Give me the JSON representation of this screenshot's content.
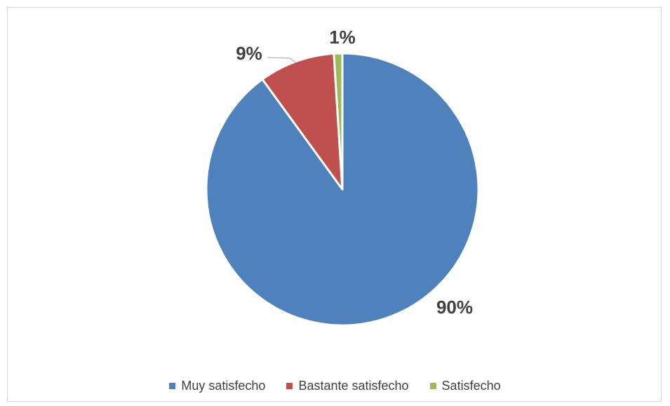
{
  "chart_data": {
    "type": "pie",
    "title": "",
    "categories": [
      "Muy satisfecho",
      "Bastante satisfecho",
      "Satisfecho"
    ],
    "values": [
      90,
      9,
      1
    ],
    "data_labels": [
      "90%",
      "9%",
      "1%"
    ],
    "colors": [
      "#4F81BD",
      "#C0504D",
      "#9BBB59"
    ],
    "start_angle_deg": 0,
    "direction": "clockwise",
    "legend_position": "bottom"
  }
}
